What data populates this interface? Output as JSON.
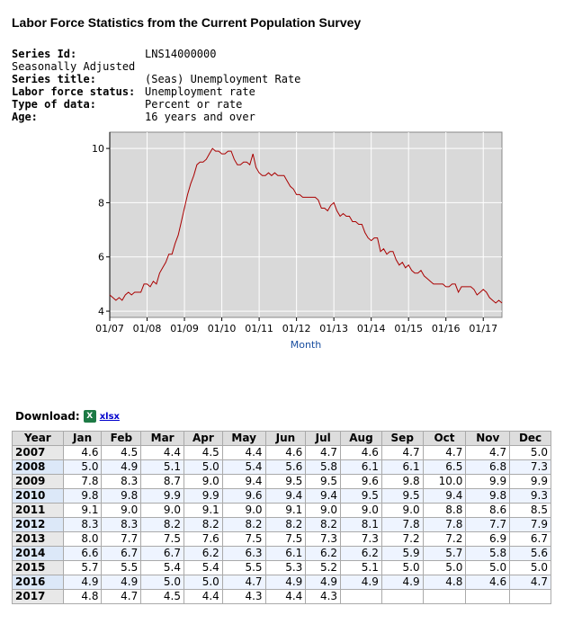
{
  "title": "Labor Force Statistics from the Current Population Survey",
  "meta": [
    {
      "k": "Series Id:",
      "v": "LNS14000000"
    },
    {
      "k": "Seasonally Adjusted",
      "v": ""
    },
    {
      "k": "Series title:",
      "v": "(Seas) Unemployment Rate"
    },
    {
      "k": "Labor force status:",
      "v": "Unemployment rate"
    },
    {
      "k": "Type of data:",
      "v": "Percent or rate"
    },
    {
      "k": "Age:",
      "v": "16 years and over"
    }
  ],
  "download": {
    "label": "Download:",
    "link": "xlsx",
    "icon": "excel-icon"
  },
  "table": {
    "headers": [
      "Year",
      "Jan",
      "Feb",
      "Mar",
      "Apr",
      "May",
      "Jun",
      "Jul",
      "Aug",
      "Sep",
      "Oct",
      "Nov",
      "Dec"
    ],
    "rows": [
      [
        "2007",
        "4.6",
        "4.5",
        "4.4",
        "4.5",
        "4.4",
        "4.6",
        "4.7",
        "4.6",
        "4.7",
        "4.7",
        "4.7",
        "5.0"
      ],
      [
        "2008",
        "5.0",
        "4.9",
        "5.1",
        "5.0",
        "5.4",
        "5.6",
        "5.8",
        "6.1",
        "6.1",
        "6.5",
        "6.8",
        "7.3"
      ],
      [
        "2009",
        "7.8",
        "8.3",
        "8.7",
        "9.0",
        "9.4",
        "9.5",
        "9.5",
        "9.6",
        "9.8",
        "10.0",
        "9.9",
        "9.9"
      ],
      [
        "2010",
        "9.8",
        "9.8",
        "9.9",
        "9.9",
        "9.6",
        "9.4",
        "9.4",
        "9.5",
        "9.5",
        "9.4",
        "9.8",
        "9.3"
      ],
      [
        "2011",
        "9.1",
        "9.0",
        "9.0",
        "9.1",
        "9.0",
        "9.1",
        "9.0",
        "9.0",
        "9.0",
        "8.8",
        "8.6",
        "8.5"
      ],
      [
        "2012",
        "8.3",
        "8.3",
        "8.2",
        "8.2",
        "8.2",
        "8.2",
        "8.2",
        "8.1",
        "7.8",
        "7.8",
        "7.7",
        "7.9"
      ],
      [
        "2013",
        "8.0",
        "7.7",
        "7.5",
        "7.6",
        "7.5",
        "7.5",
        "7.3",
        "7.3",
        "7.2",
        "7.2",
        "6.9",
        "6.7"
      ],
      [
        "2014",
        "6.6",
        "6.7",
        "6.7",
        "6.2",
        "6.3",
        "6.1",
        "6.2",
        "6.2",
        "5.9",
        "5.7",
        "5.8",
        "5.6"
      ],
      [
        "2015",
        "5.7",
        "5.5",
        "5.4",
        "5.4",
        "5.5",
        "5.3",
        "5.2",
        "5.1",
        "5.0",
        "5.0",
        "5.0",
        "5.0"
      ],
      [
        "2016",
        "4.9",
        "4.9",
        "5.0",
        "5.0",
        "4.7",
        "4.9",
        "4.9",
        "4.9",
        "4.9",
        "4.8",
        "4.6",
        "4.7"
      ],
      [
        "2017",
        "4.8",
        "4.7",
        "4.5",
        "4.4",
        "4.3",
        "4.4",
        "4.3",
        "",
        "",
        "",
        "",
        ""
      ]
    ]
  },
  "chart_data": {
    "type": "line",
    "title": "",
    "xlabel": "Month",
    "ylabel": "",
    "x_start": "01/2007",
    "x_end": "07/2017",
    "xticks": [
      "01/07",
      "01/08",
      "01/09",
      "01/10",
      "01/11",
      "01/12",
      "01/13",
      "01/14",
      "01/15",
      "01/16",
      "01/17"
    ],
    "yticks": [
      4,
      6,
      8,
      10
    ],
    "ylim": [
      3.77,
      10.6
    ],
    "grid": true,
    "line_color": "#aa0000",
    "plot_bg": "#d9d9d9",
    "series": [
      {
        "name": "Unemployment rate",
        "values": [
          4.6,
          4.5,
          4.4,
          4.5,
          4.4,
          4.6,
          4.7,
          4.6,
          4.7,
          4.7,
          4.7,
          5.0,
          5.0,
          4.9,
          5.1,
          5.0,
          5.4,
          5.6,
          5.8,
          6.1,
          6.1,
          6.5,
          6.8,
          7.3,
          7.8,
          8.3,
          8.7,
          9.0,
          9.4,
          9.5,
          9.5,
          9.6,
          9.8,
          10.0,
          9.9,
          9.9,
          9.8,
          9.8,
          9.9,
          9.9,
          9.6,
          9.4,
          9.4,
          9.5,
          9.5,
          9.4,
          9.8,
          9.3,
          9.1,
          9.0,
          9.0,
          9.1,
          9.0,
          9.1,
          9.0,
          9.0,
          9.0,
          8.8,
          8.6,
          8.5,
          8.3,
          8.3,
          8.2,
          8.2,
          8.2,
          8.2,
          8.2,
          8.1,
          7.8,
          7.8,
          7.7,
          7.9,
          8.0,
          7.7,
          7.5,
          7.6,
          7.5,
          7.5,
          7.3,
          7.3,
          7.2,
          7.2,
          6.9,
          6.7,
          6.6,
          6.7,
          6.7,
          6.2,
          6.3,
          6.1,
          6.2,
          6.2,
          5.9,
          5.7,
          5.8,
          5.6,
          5.7,
          5.5,
          5.4,
          5.4,
          5.5,
          5.3,
          5.2,
          5.1,
          5.0,
          5.0,
          5.0,
          5.0,
          4.9,
          4.9,
          5.0,
          5.0,
          4.7,
          4.9,
          4.9,
          4.9,
          4.9,
          4.8,
          4.6,
          4.7,
          4.8,
          4.7,
          4.5,
          4.4,
          4.3,
          4.4,
          4.3
        ]
      }
    ]
  }
}
